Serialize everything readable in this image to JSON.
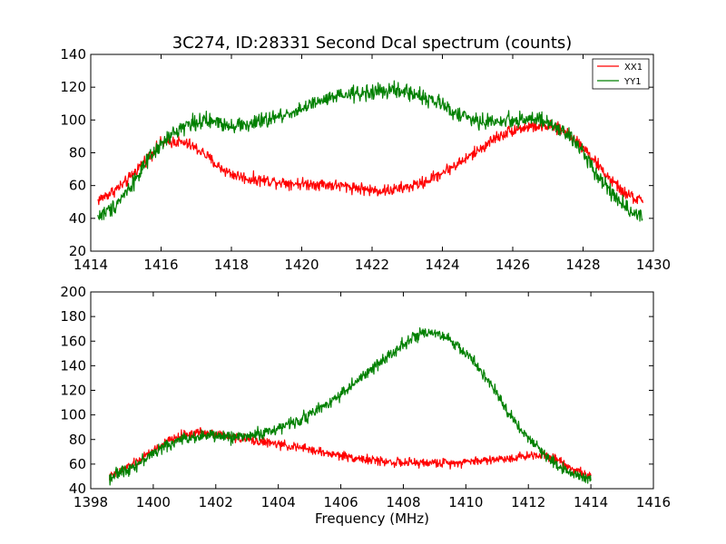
{
  "chart_data": [
    {
      "type": "line",
      "title": "3C274, ID:28331 Second Dcal spectrum (counts)",
      "xlabel": "",
      "ylabel": "",
      "xlim": [
        1414,
        1430
      ],
      "ylim": [
        20,
        140
      ],
      "xticks": [
        1414,
        1416,
        1418,
        1420,
        1422,
        1424,
        1426,
        1428,
        1430
      ],
      "yticks": [
        20,
        40,
        60,
        80,
        100,
        120,
        140
      ],
      "grid": false,
      "legend": "top-right",
      "series": [
        {
          "name": "XX1",
          "color": "#ff0000",
          "noise": 3,
          "x": [
            1414.2,
            1414.6,
            1415.0,
            1415.4,
            1415.8,
            1416.0,
            1416.4,
            1416.8,
            1417.2,
            1417.6,
            1418.0,
            1418.5,
            1419.0,
            1419.5,
            1420.0,
            1420.5,
            1421.0,
            1421.5,
            1422.0,
            1422.5,
            1423.0,
            1423.5,
            1424.0,
            1424.5,
            1425.0,
            1425.5,
            1426.0,
            1426.5,
            1427.0,
            1427.5,
            1428.0,
            1428.4,
            1428.8,
            1429.2,
            1429.7
          ],
          "values": [
            51,
            56,
            62,
            72,
            81,
            86,
            87,
            85,
            80,
            72,
            67,
            64,
            63,
            62,
            61,
            61,
            60,
            59,
            57,
            57,
            59,
            62,
            68,
            74,
            81,
            89,
            94,
            96,
            96,
            93,
            84,
            73,
            63,
            55,
            50
          ]
        },
        {
          "name": "YY1",
          "color": "#008000",
          "noise": 4,
          "x": [
            1414.2,
            1414.6,
            1415.0,
            1415.4,
            1415.8,
            1416.2,
            1416.6,
            1417.0,
            1417.5,
            1418.0,
            1418.5,
            1419.0,
            1419.5,
            1420.0,
            1420.5,
            1421.0,
            1421.5,
            1422.0,
            1422.5,
            1423.0,
            1423.5,
            1424.0,
            1424.5,
            1425.0,
            1425.5,
            1426.0,
            1426.5,
            1427.0,
            1427.5,
            1428.0,
            1428.4,
            1428.8,
            1429.2,
            1429.7
          ],
          "values": [
            41,
            46,
            56,
            68,
            80,
            89,
            96,
            99,
            99,
            97,
            97,
            100,
            103,
            107,
            111,
            114,
            116,
            117,
            118,
            117,
            114,
            109,
            103,
            99,
            99,
            100,
            101,
            98,
            92,
            81,
            67,
            56,
            47,
            41
          ]
        }
      ]
    },
    {
      "type": "line",
      "title": "",
      "xlabel": "Frequency (MHz)",
      "ylabel": "",
      "xlim": [
        1398,
        1416
      ],
      "ylim": [
        40,
        200
      ],
      "xticks": [
        1398,
        1400,
        1402,
        1404,
        1406,
        1408,
        1410,
        1412,
        1414,
        1416
      ],
      "yticks": [
        40,
        60,
        80,
        100,
        120,
        140,
        160,
        180,
        200
      ],
      "grid": false,
      "legend": "none",
      "series": [
        {
          "name": "XX1",
          "color": "#ff0000",
          "noise": 3,
          "x": [
            1398.6,
            1399.0,
            1399.5,
            1400.0,
            1400.5,
            1401.0,
            1401.5,
            1402.0,
            1402.5,
            1403.0,
            1403.5,
            1404.0,
            1404.5,
            1405.0,
            1405.5,
            1406.0,
            1406.5,
            1407.0,
            1407.5,
            1408.0,
            1408.5,
            1409.0,
            1409.5,
            1410.0,
            1410.5,
            1411.0,
            1411.5,
            1412.0,
            1412.5,
            1413.0,
            1413.5,
            1414.0
          ],
          "values": [
            49,
            55,
            62,
            71,
            79,
            84,
            86,
            85,
            82,
            80,
            78,
            76,
            74,
            72,
            69,
            67,
            65,
            63,
            62,
            61,
            61,
            61,
            61,
            62,
            63,
            64,
            65,
            67,
            68,
            63,
            55,
            50
          ]
        },
        {
          "name": "YY1",
          "color": "#008000",
          "noise": 4,
          "x": [
            1398.6,
            1399.0,
            1399.5,
            1400.0,
            1400.5,
            1401.0,
            1401.5,
            1402.0,
            1402.5,
            1403.0,
            1403.5,
            1404.0,
            1404.5,
            1405.0,
            1405.5,
            1406.0,
            1406.5,
            1407.0,
            1407.5,
            1408.0,
            1408.5,
            1409.0,
            1409.5,
            1410.0,
            1410.5,
            1411.0,
            1411.5,
            1412.0,
            1412.5,
            1413.0,
            1413.5,
            1414.0
          ],
          "values": [
            49,
            54,
            60,
            69,
            76,
            81,
            83,
            83,
            82,
            83,
            85,
            89,
            94,
            100,
            108,
            117,
            127,
            137,
            148,
            158,
            165,
            166,
            161,
            150,
            136,
            116,
            97,
            81,
            68,
            58,
            52,
            48
          ]
        }
      ]
    }
  ]
}
